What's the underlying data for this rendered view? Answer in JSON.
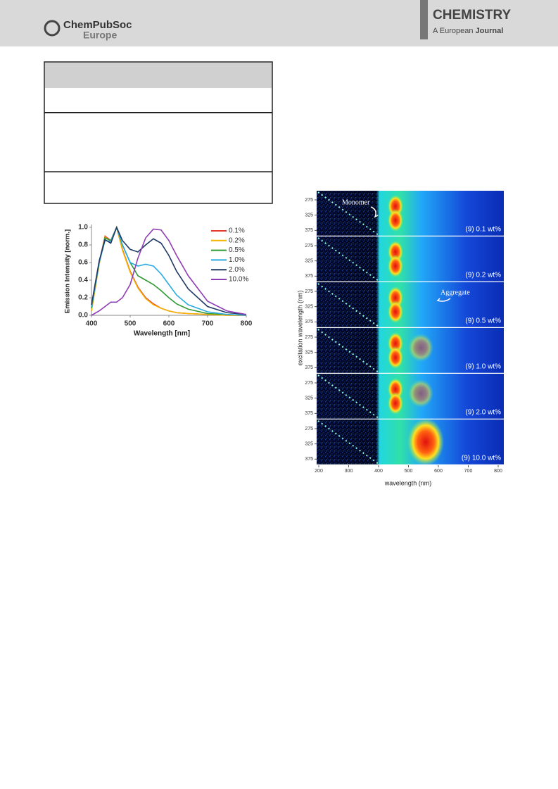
{
  "header": {
    "publisher": "ChemPubSoc",
    "publisher_sub": "Europe",
    "journal": "CHEMISTRY",
    "journal_sub_a": "A European",
    "journal_sub_b": "Journal"
  },
  "chart_data": {
    "type": "line",
    "y_label": "Emission Intensity [norm.]",
    "x_label": "Wavelength [nm]",
    "x": [
      400,
      420,
      435,
      450,
      465,
      480,
      500,
      520,
      540,
      560,
      580,
      600,
      620,
      650,
      700,
      750,
      800
    ],
    "series": [
      {
        "name": "0.1%",
        "color": "#e8372c",
        "values": [
          0.05,
          0.6,
          0.9,
          0.85,
          1.0,
          0.75,
          0.5,
          0.32,
          0.2,
          0.13,
          0.08,
          0.05,
          0.03,
          0.02,
          0.01,
          0,
          0
        ]
      },
      {
        "name": "0.2%",
        "color": "#f5b400",
        "values": [
          0.05,
          0.58,
          0.89,
          0.84,
          1.0,
          0.74,
          0.49,
          0.31,
          0.19,
          0.12,
          0.08,
          0.05,
          0.03,
          0.02,
          0.01,
          0,
          0
        ]
      },
      {
        "name": "0.5%",
        "color": "#2e9a33",
        "values": [
          0.08,
          0.6,
          0.88,
          0.85,
          1.0,
          0.8,
          0.6,
          0.45,
          0.4,
          0.35,
          0.28,
          0.2,
          0.13,
          0.07,
          0.02,
          0.01,
          0
        ]
      },
      {
        "name": "1.0%",
        "color": "#29abe2",
        "values": [
          0.1,
          0.6,
          0.85,
          0.84,
          1.0,
          0.8,
          0.6,
          0.56,
          0.58,
          0.56,
          0.47,
          0.35,
          0.23,
          0.12,
          0.04,
          0.01,
          0
        ]
      },
      {
        "name": "2.0%",
        "color": "#1f3864",
        "values": [
          0.12,
          0.62,
          0.86,
          0.82,
          1.0,
          0.85,
          0.75,
          0.72,
          0.8,
          0.87,
          0.82,
          0.68,
          0.5,
          0.3,
          0.1,
          0.03,
          0.01
        ]
      },
      {
        "name": "10.0%",
        "color": "#8e3cb4",
        "values": [
          0,
          0.05,
          0.1,
          0.15,
          0.15,
          0.2,
          0.35,
          0.65,
          0.88,
          0.98,
          0.97,
          0.85,
          0.68,
          0.45,
          0.16,
          0.05,
          0.01
        ]
      }
    ],
    "xlim": [
      400,
      800
    ],
    "ylim": [
      0,
      1
    ],
    "xticks": [
      400,
      500,
      600,
      700,
      800
    ],
    "yticks": [
      {
        "value": 0,
        "label": "0.0"
      },
      0.2,
      0.4,
      0.6,
      0.8,
      {
        "value": 1,
        "label": "1.0"
      }
    ]
  },
  "heatmap": {
    "y_label": "excitation wavelength (nm)",
    "x_label": "wavelength (nm)",
    "xlim": [
      200,
      800
    ],
    "xticks": [
      200,
      300,
      400,
      500,
      600,
      700,
      800
    ],
    "ylim": [
      245,
      395
    ],
    "yticks": [
      275,
      325,
      375
    ],
    "panels": [
      "(9) 0.1 wt%",
      "(9) 0.2 wt%",
      "(9) 0.5 wt%",
      "(9) 1.0 wt%",
      "(9) 2.0 wt%",
      "(9) 10.0 wt%"
    ],
    "annotations": [
      "Monomer",
      "Aggregate"
    ]
  }
}
